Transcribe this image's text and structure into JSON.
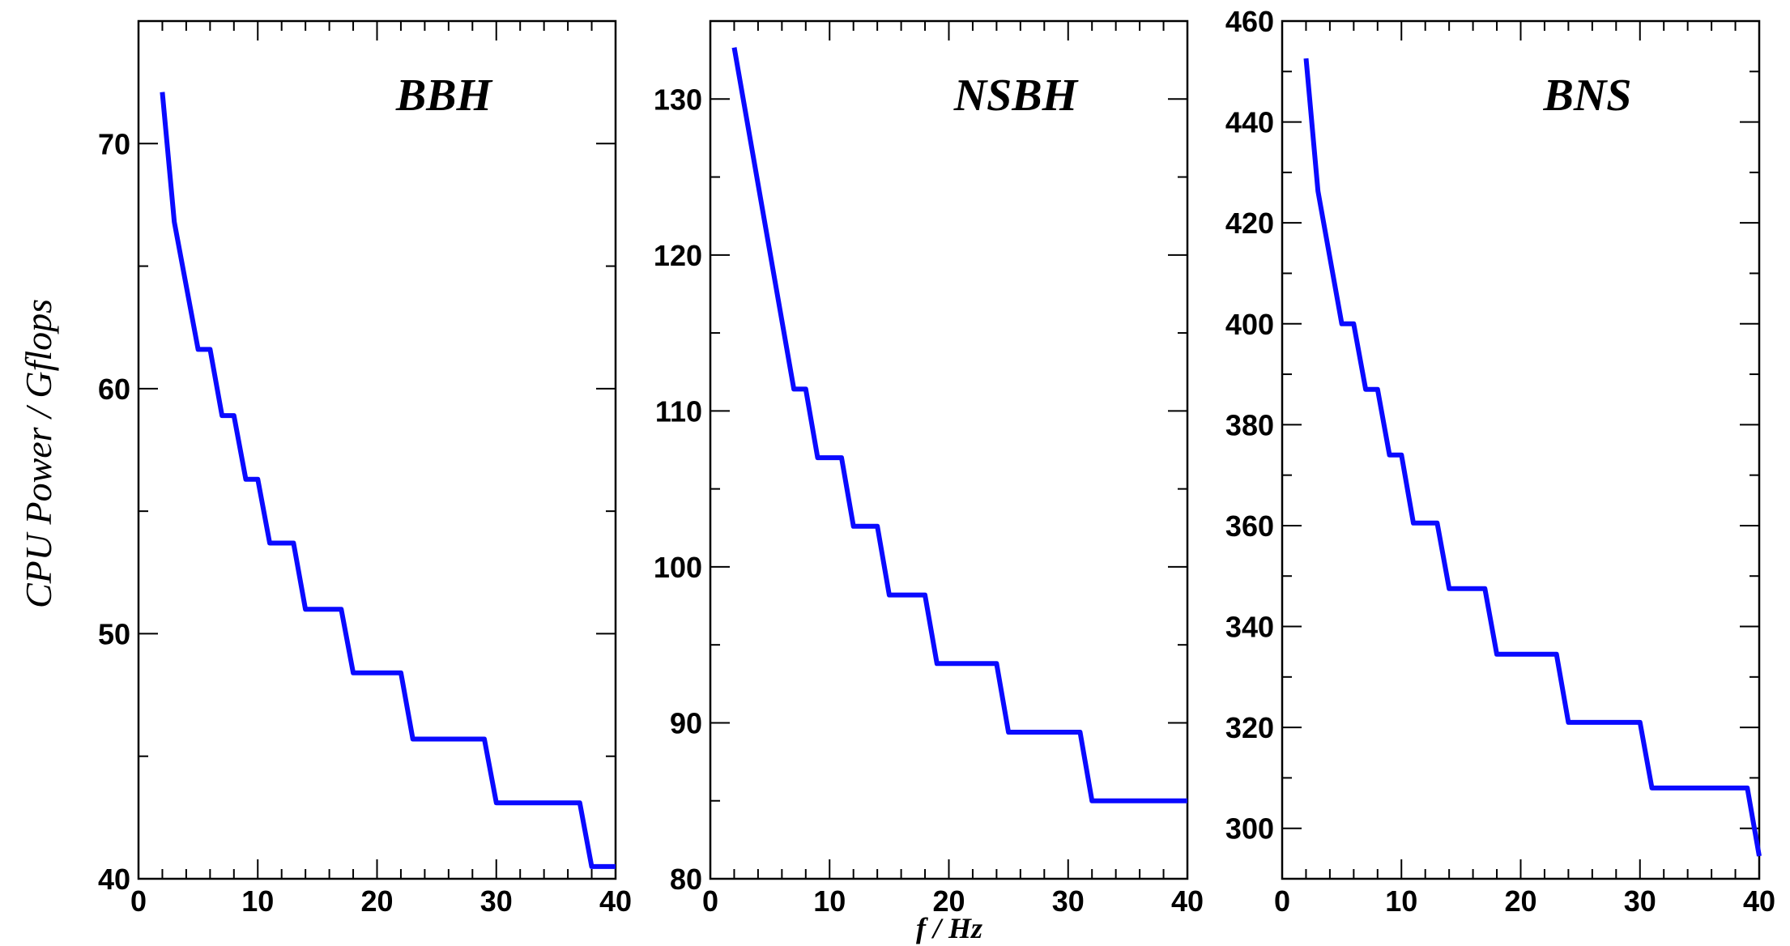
{
  "figure": {
    "ylabel": "CPU Power / Gflops",
    "xlabel": "f / Hz",
    "line_color": "#0a0aff"
  },
  "chart_data": [
    {
      "type": "line",
      "title": "BBH",
      "xlim": [
        0,
        40
      ],
      "ylim": [
        40,
        75
      ],
      "xticks": [
        0,
        10,
        20,
        30,
        40
      ],
      "yticks": [
        40,
        50,
        60,
        70
      ],
      "x": [
        2,
        3,
        5,
        6,
        7,
        8,
        9,
        10,
        11,
        13,
        14,
        17,
        18,
        22,
        23,
        29,
        30,
        37,
        38,
        40
      ],
      "series": [
        {
          "values": [
            72.1,
            66.8,
            61.6,
            61.6,
            58.9,
            58.9,
            56.3,
            56.3,
            53.7,
            53.7,
            51.0,
            51.0,
            48.4,
            48.4,
            45.7,
            45.7,
            43.1,
            43.1,
            40.5,
            40.5
          ]
        }
      ]
    },
    {
      "type": "line",
      "title": "NSBH",
      "xlim": [
        0,
        40
      ],
      "ylim": [
        80,
        135
      ],
      "xticks": [
        0,
        10,
        20,
        30,
        40
      ],
      "yticks": [
        80,
        90,
        100,
        110,
        120,
        130
      ],
      "x": [
        2,
        7,
        8,
        9,
        11,
        12,
        14,
        15,
        18,
        19,
        24,
        25,
        31,
        32,
        40
      ],
      "series": [
        {
          "values": [
            133.3,
            111.4,
            111.4,
            107.0,
            107.0,
            102.6,
            102.6,
            98.2,
            98.2,
            93.8,
            93.8,
            89.4,
            89.4,
            85.0,
            85.0
          ]
        }
      ]
    },
    {
      "type": "line",
      "title": "BNS",
      "xlim": [
        0,
        40
      ],
      "ylim": [
        290,
        460
      ],
      "xticks": [
        0,
        10,
        20,
        30,
        40
      ],
      "yticks": [
        300,
        320,
        340,
        360,
        380,
        400,
        420,
        440,
        460
      ],
      "x": [
        2,
        3,
        5,
        6,
        7,
        8,
        9,
        10,
        11,
        13,
        14,
        17,
        18,
        23,
        24,
        30,
        31,
        39,
        40
      ],
      "series": [
        {
          "values": [
            452.6,
            426.3,
            400.0,
            400.0,
            387.0,
            387.0,
            374.0,
            374.0,
            360.5,
            360.5,
            347.5,
            347.5,
            334.5,
            334.5,
            321.0,
            321.0,
            308.0,
            308.0,
            294.5
          ]
        }
      ]
    }
  ]
}
